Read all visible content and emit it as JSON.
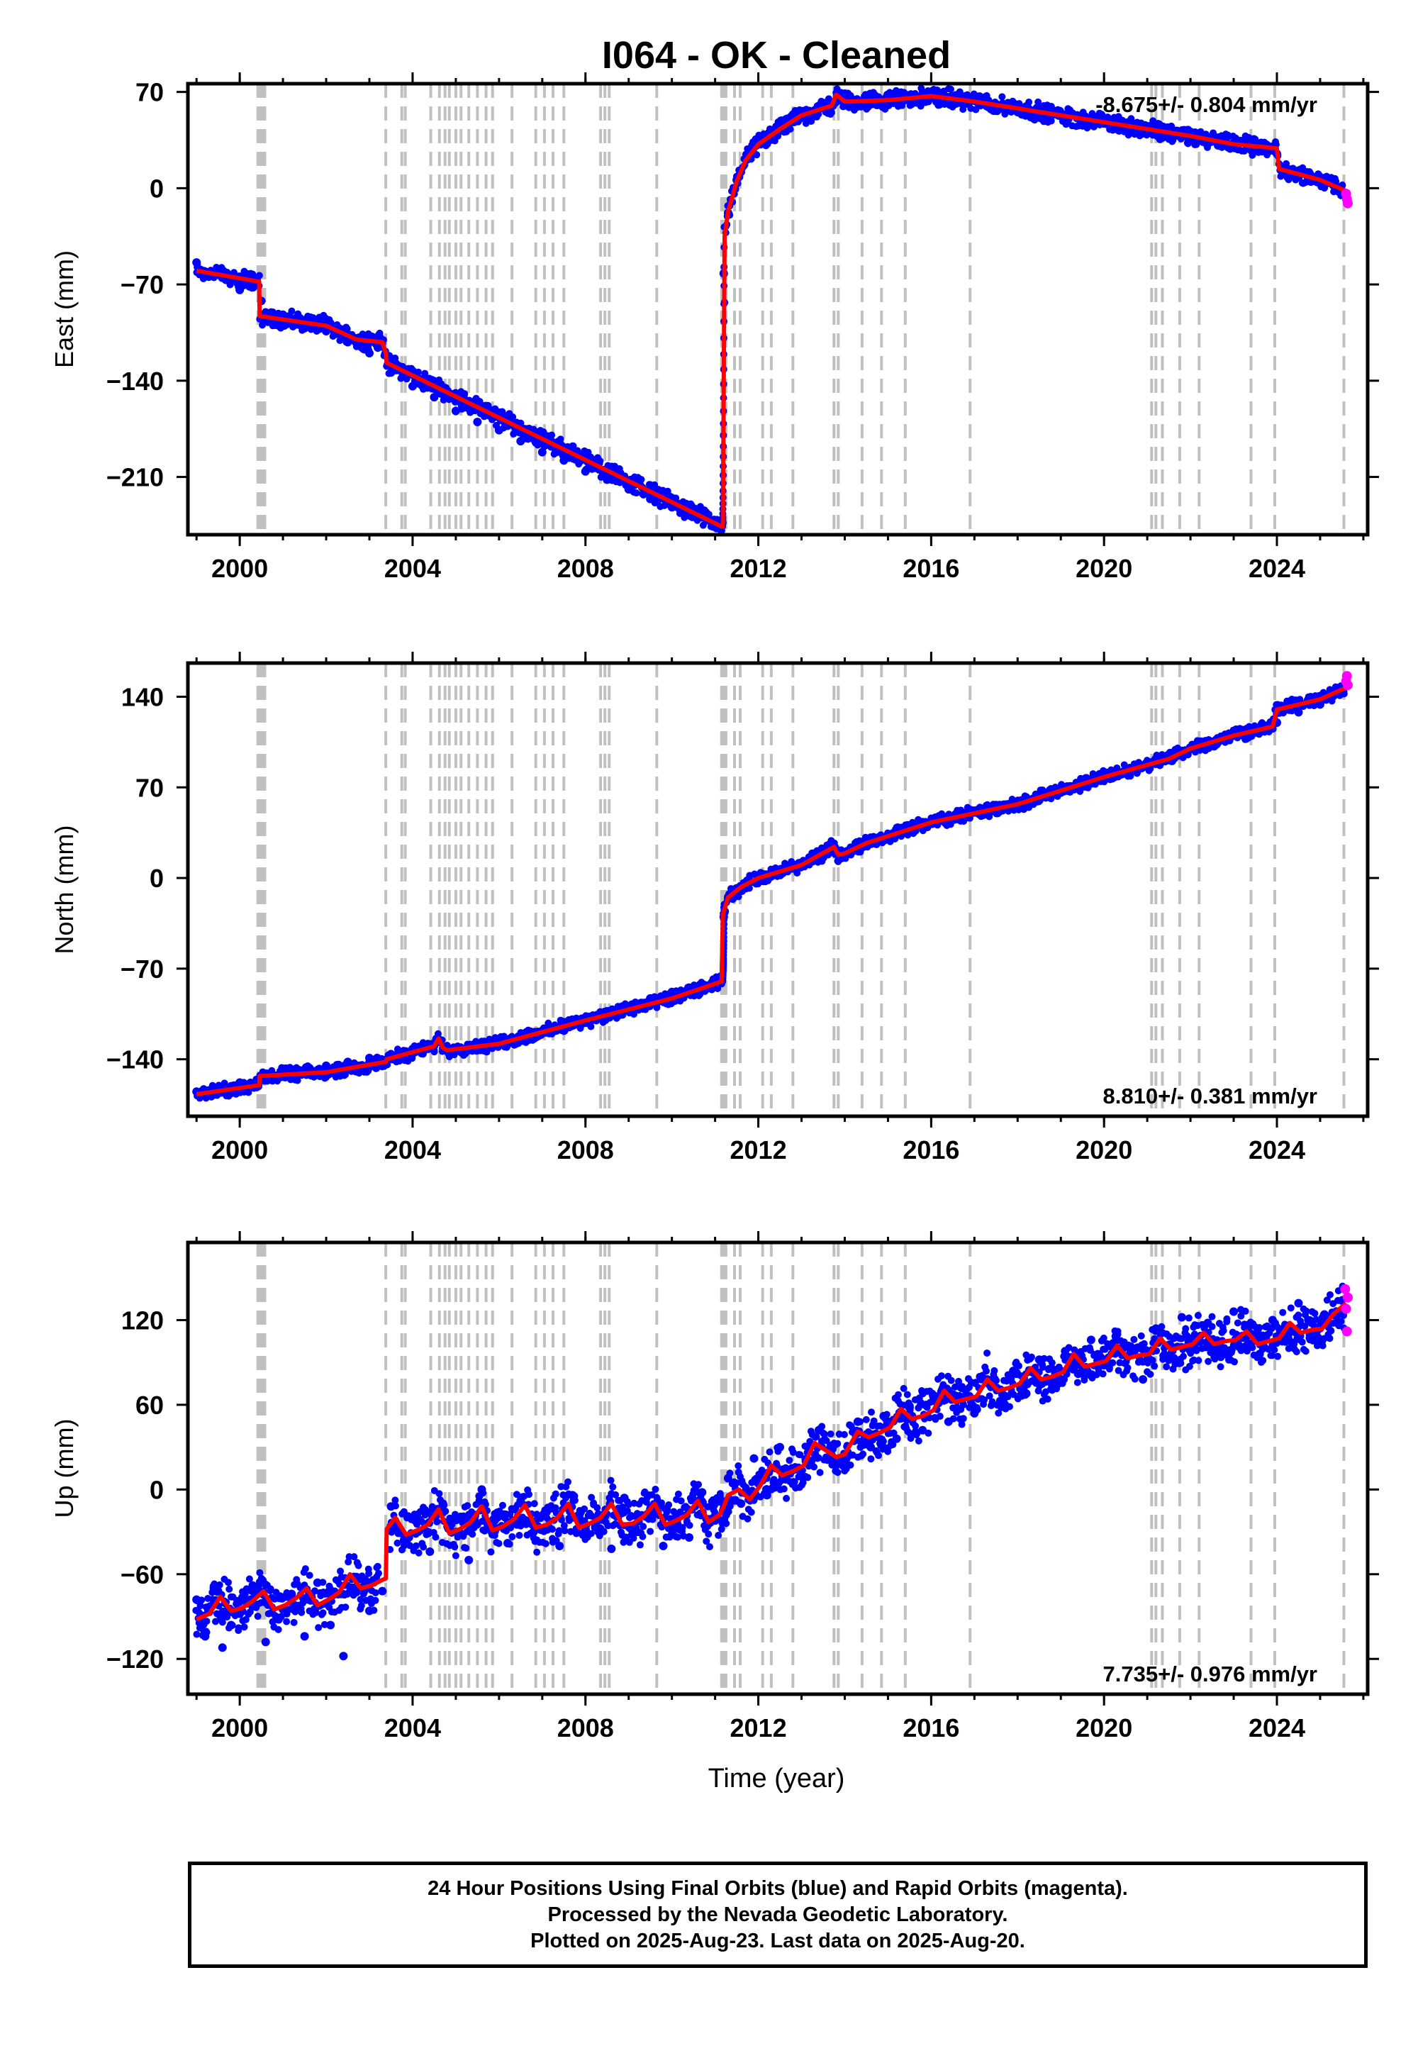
{
  "title": "I064  - OK - Cleaned",
  "xlabel": "Time (year)",
  "colors": {
    "final_orbits": "#0000ff",
    "rapid_orbits": "#ff00ff",
    "model": "#ff0000",
    "event_lines": "#c0c0c0",
    "frame": "#000000"
  },
  "caption": [
    "24 Hour Positions Using Final Orbits (blue) and Rapid Orbits (magenta).",
    "Processed by the Nevada Geodetic Laboratory.",
    "Plotted on 2025-Aug-23. Last data on 2025-Aug-20."
  ],
  "chart_data": [
    {
      "type": "scatter",
      "name": "east",
      "ylabel": "East (mm)",
      "rate": "-8.675+/- 0.804 mm/yr",
      "rate_position": "top-right",
      "xlim": [
        1998.8,
        2026.1
      ],
      "ylim": [
        -252,
        76
      ],
      "xticks": [
        2000,
        2004,
        2008,
        2012,
        2016,
        2020,
        2024
      ],
      "yticks": [
        70,
        0,
        -70,
        -140,
        -210
      ],
      "ytick_labels": [
        "70",
        "0",
        "−70",
        "−140",
        "−210"
      ],
      "event_years": [
        2000.42,
        2000.46,
        2000.5,
        2000.54,
        2000.58,
        2003.38,
        2003.75,
        2003.83,
        2004.42,
        2004.62,
        2004.75,
        2004.85,
        2005.0,
        2005.12,
        2005.3,
        2005.5,
        2005.7,
        2005.85,
        2006.3,
        2006.85,
        2007.05,
        2007.25,
        2007.5,
        2008.35,
        2008.45,
        2008.55,
        2009.65,
        2011.15,
        2011.2,
        2011.25,
        2011.45,
        2011.58,
        2012.1,
        2012.3,
        2012.8,
        2013.75,
        2013.85,
        2014.4,
        2014.85,
        2015.4,
        2016.9,
        2021.1,
        2021.2,
        2021.35,
        2021.75,
        2022.2,
        2023.4,
        2023.95,
        2025.55
      ],
      "model": {
        "x": [
          1999.0,
          2000.45,
          2000.46,
          2002.0,
          2002.7,
          2003.3,
          2003.38,
          2003.4,
          2011.15,
          2011.18,
          2011.22,
          2011.3,
          2011.5,
          2011.7,
          2012.0,
          2012.5,
          2013.0,
          2013.7,
          2013.8,
          2014.0,
          2015.0,
          2016.0,
          2017.0,
          2018.0,
          2019.0,
          2020.0,
          2021.0,
          2022.0,
          2023.0,
          2024.0,
          2024.05,
          2025.0,
          2025.6
        ],
        "y": [
          -60,
          -68,
          -93,
          -100,
          -110,
          -112,
          -120,
          -127,
          -246,
          -246,
          -35,
          -17,
          5,
          20,
          32,
          43,
          53,
          60,
          68,
          63,
          64,
          67,
          63,
          58,
          53,
          48,
          43,
          38,
          32,
          29,
          14,
          6,
          -2
        ]
      },
      "final_points": {
        "x": [
          1999.0,
          1999.5,
          2000.0,
          2000.5,
          2001.0,
          2001.5,
          2002.0,
          2002.5,
          2003.0,
          2003.5,
          2004.0,
          2004.5,
          2005.0,
          2005.5,
          2006.0,
          2006.5,
          2007.0,
          2007.5,
          2008.0,
          2008.5,
          2009.0,
          2009.5,
          2010.0,
          2010.5,
          2011.0,
          2011.2,
          2011.3,
          2011.5,
          2011.75,
          2012.0,
          2012.5,
          2013.0,
          2013.5,
          2014.0,
          2014.5,
          2015.0,
          2015.5,
          2016.0,
          2016.5,
          2017.0,
          2017.5,
          2018.0,
          2018.5,
          2019.0,
          2019.5,
          2020.0,
          2020.5,
          2021.0,
          2021.5,
          2022.0,
          2022.5,
          2023.0,
          2023.5,
          2024.0,
          2024.5,
          2025.0,
          2025.5
        ],
        "y": [
          -54,
          -62,
          -74,
          -82,
          -92,
          -99,
          -104,
          -112,
          -120,
          -134,
          -144,
          -152,
          -162,
          -170,
          -176,
          -184,
          -192,
          -198,
          -206,
          -212,
          -219,
          -226,
          -232,
          -238,
          -244,
          -62,
          -18,
          6,
          22,
          34,
          46,
          55,
          62,
          65,
          66,
          68,
          67,
          69,
          65,
          64,
          60,
          58,
          55,
          53,
          50,
          47,
          45,
          42,
          39,
          36,
          34,
          31,
          29,
          25,
          8,
          5,
          -4
        ]
      },
      "rapid_points": {
        "x": [
          2025.6,
          2025.62,
          2025.64
        ],
        "y": [
          -4,
          -8,
          -11
        ]
      }
    },
    {
      "type": "scatter",
      "name": "north",
      "ylabel": "North (mm)",
      "rate": "8.810+/- 0.381 mm/yr",
      "rate_position": "bottom-right",
      "xlim": [
        1998.8,
        2026.1
      ],
      "ylim": [
        -184,
        166
      ],
      "xticks": [
        2000,
        2004,
        2008,
        2012,
        2016,
        2020,
        2024
      ],
      "yticks": [
        140,
        70,
        0,
        -70,
        -140
      ],
      "ytick_labels": [
        "140",
        "70",
        "0",
        "−70",
        "−140"
      ],
      "event_years": [
        2000.42,
        2000.46,
        2000.5,
        2000.54,
        2000.58,
        2003.38,
        2003.75,
        2003.83,
        2004.42,
        2004.62,
        2004.75,
        2004.85,
        2005.0,
        2005.12,
        2005.3,
        2005.5,
        2005.7,
        2005.85,
        2006.3,
        2006.85,
        2007.05,
        2007.25,
        2007.5,
        2008.35,
        2008.45,
        2008.55,
        2009.65,
        2011.15,
        2011.2,
        2011.25,
        2011.45,
        2011.58,
        2012.1,
        2012.3,
        2012.8,
        2013.75,
        2013.85,
        2014.4,
        2014.85,
        2015.4,
        2016.9,
        2021.1,
        2021.2,
        2021.35,
        2021.75,
        2022.2,
        2023.4,
        2023.95,
        2025.55
      ],
      "model": {
        "x": [
          1999.0,
          2000.45,
          2000.46,
          2002.0,
          2003.38,
          2003.4,
          2004.5,
          2004.6,
          2004.7,
          2004.8,
          2006.0,
          2008.0,
          2010.0,
          2011.15,
          2011.18,
          2011.3,
          2011.6,
          2012.0,
          2013.0,
          2013.75,
          2013.85,
          2014.0,
          2014.5,
          2016.0,
          2018.0,
          2020.0,
          2021.5,
          2022.0,
          2023.0,
          2023.9,
          2024.0,
          2025.0,
          2025.6
        ],
        "y": [
          -167,
          -160,
          -153,
          -150,
          -142,
          -140,
          -130,
          -124,
          -131,
          -133,
          -128,
          -110,
          -93,
          -80,
          -28,
          -15,
          -7,
          0,
          10,
          24,
          18,
          19,
          27,
          43,
          57,
          78,
          92,
          100,
          110,
          117,
          130,
          138,
          147
        ]
      },
      "final_points": {
        "x": [
          1999.0,
          1999.5,
          2000.0,
          2000.5,
          2001.0,
          2001.5,
          2002.0,
          2002.5,
          2003.0,
          2003.5,
          2004.0,
          2004.5,
          2005.0,
          2005.5,
          2006.0,
          2006.5,
          2007.0,
          2007.5,
          2008.0,
          2008.5,
          2009.0,
          2009.5,
          2010.0,
          2010.5,
          2011.0,
          2011.2,
          2011.3,
          2011.5,
          2012.0,
          2012.5,
          2013.0,
          2013.5,
          2014.0,
          2014.5,
          2015.0,
          2015.5,
          2016.0,
          2016.5,
          2017.0,
          2017.5,
          2018.0,
          2018.5,
          2019.0,
          2019.5,
          2020.0,
          2020.5,
          2021.0,
          2021.5,
          2022.0,
          2022.5,
          2023.0,
          2023.5,
          2024.0,
          2024.5,
          2025.0,
          2025.5
        ],
        "y": [
          -165,
          -162,
          -158,
          -155,
          -151,
          -148,
          -145,
          -142,
          -139,
          -136,
          -132,
          -129,
          -131,
          -132,
          -128,
          -123,
          -118,
          -114,
          -110,
          -103,
          -99,
          -93,
          -88,
          -85,
          -82,
          -30,
          -16,
          -8,
          0,
          5,
          10,
          16,
          20,
          26,
          32,
          36,
          43,
          46,
          52,
          54,
          57,
          60,
          66,
          72,
          78,
          82,
          88,
          94,
          100,
          104,
          110,
          114,
          120,
          128,
          134,
          143
        ]
      },
      "rapid_points": {
        "x": [
          2025.6,
          2025.62,
          2025.64
        ],
        "y": [
          152,
          156,
          149
        ]
      }
    },
    {
      "type": "scatter",
      "name": "up",
      "ylabel": "Up (mm)",
      "rate": "7.735+/- 0.976 mm/yr",
      "rate_position": "bottom-right",
      "xlim": [
        1998.8,
        2026.1
      ],
      "ylim": [
        -145,
        175
      ],
      "xticks": [
        2000,
        2004,
        2008,
        2012,
        2016,
        2020,
        2024
      ],
      "yticks": [
        120,
        60,
        0,
        -60,
        -120
      ],
      "ytick_labels": [
        "120",
        "60",
        "0",
        "−60",
        "−120"
      ],
      "event_years": [
        2000.42,
        2000.46,
        2000.5,
        2000.54,
        2000.58,
        2003.38,
        2003.75,
        2003.83,
        2004.42,
        2004.62,
        2004.75,
        2004.85,
        2005.0,
        2005.12,
        2005.3,
        2005.5,
        2005.7,
        2005.85,
        2006.3,
        2006.85,
        2007.05,
        2007.25,
        2007.5,
        2008.35,
        2008.45,
        2008.55,
        2009.65,
        2011.15,
        2011.2,
        2011.25,
        2011.45,
        2011.58,
        2012.1,
        2012.3,
        2012.8,
        2013.75,
        2013.85,
        2014.4,
        2014.85,
        2015.4,
        2016.9,
        2021.1,
        2021.2,
        2021.35,
        2021.75,
        2022.2,
        2023.4,
        2023.95,
        2025.55
      ],
      "model": {
        "x": [
          1999.0,
          1999.3,
          1999.55,
          1999.8,
          2000.05,
          2000.3,
          2000.55,
          2000.8,
          2001.05,
          2001.3,
          2001.55,
          2001.8,
          2002.05,
          2002.3,
          2002.55,
          2002.8,
          2003.05,
          2003.3,
          2003.38,
          2003.4,
          2003.6,
          2003.85,
          2004.1,
          2004.35,
          2004.6,
          2004.85,
          2005.1,
          2005.35,
          2005.6,
          2005.85,
          2006.1,
          2006.35,
          2006.6,
          2006.85,
          2007.1,
          2007.35,
          2007.6,
          2007.85,
          2008.1,
          2008.35,
          2008.6,
          2008.85,
          2009.1,
          2009.35,
          2009.6,
          2009.85,
          2010.1,
          2010.35,
          2010.6,
          2010.85,
          2011.1,
          2011.2,
          2011.3,
          2011.55,
          2011.8,
          2012.05,
          2012.3,
          2012.55,
          2012.8,
          2013.05,
          2013.3,
          2013.55,
          2013.8,
          2014.0,
          2014.3,
          2014.55,
          2014.8,
          2015.05,
          2015.3,
          2015.55,
          2015.8,
          2016.05,
          2016.3,
          2016.55,
          2016.8,
          2017.05,
          2017.3,
          2017.55,
          2017.8,
          2018.05,
          2018.3,
          2018.55,
          2018.8,
          2019.05,
          2019.3,
          2019.55,
          2019.8,
          2020.05,
          2020.3,
          2020.55,
          2020.8,
          2021.05,
          2021.3,
          2021.55,
          2021.8,
          2022.05,
          2022.3,
          2022.55,
          2022.8,
          2023.05,
          2023.3,
          2023.55,
          2023.8,
          2024.05,
          2024.3,
          2024.55,
          2024.8,
          2025.05,
          2025.3,
          2025.6
        ],
        "y": [
          -92,
          -88,
          -76,
          -86,
          -84,
          -79,
          -72,
          -85,
          -82,
          -77,
          -70,
          -82,
          -78,
          -73,
          -60,
          -70,
          -68,
          -64,
          -63,
          -28,
          -20,
          -32,
          -29,
          -25,
          -14,
          -31,
          -28,
          -23,
          -12,
          -29,
          -26,
          -21,
          -11,
          -27,
          -25,
          -20,
          -10,
          -27,
          -24,
          -20,
          -10,
          -25,
          -24,
          -19,
          -10,
          -25,
          -22,
          -18,
          -8,
          -23,
          -18,
          -12,
          -4,
          0,
          -7,
          3,
          17,
          10,
          13,
          17,
          33,
          28,
          23,
          25,
          41,
          37,
          40,
          44,
          57,
          50,
          52,
          56,
          70,
          62,
          64,
          66,
          78,
          70,
          72,
          75,
          86,
          78,
          80,
          83,
          96,
          87,
          89,
          91,
          102,
          93,
          95,
          96,
          107,
          99,
          101,
          103,
          111,
          103,
          105,
          106,
          112,
          103,
          105,
          107,
          118,
          111,
          113,
          114,
          124,
          132
        ]
      },
      "final_points": {
        "x": [
          1999.0,
          1999.2,
          1999.4,
          1999.6,
          1999.8,
          2000.0,
          2000.3,
          2000.6,
          2000.9,
          2001.2,
          2001.5,
          2001.8,
          2002.1,
          2002.4,
          2002.7,
          2003.0,
          2003.3,
          2003.5,
          2003.8,
          2004.1,
          2004.4,
          2004.7,
          2005.0,
          2005.3,
          2005.6,
          2005.9,
          2006.2,
          2006.5,
          2006.8,
          2007.1,
          2007.4,
          2007.7,
          2008.0,
          2008.3,
          2008.6,
          2008.9,
          2009.2,
          2009.5,
          2009.8,
          2010.1,
          2010.4,
          2010.7,
          2011.0,
          2011.3,
          2011.6,
          2011.9,
          2012.2,
          2012.5,
          2012.8,
          2013.1,
          2013.4,
          2013.7,
          2014.0,
          2014.3,
          2014.6,
          2014.9,
          2015.2,
          2015.5,
          2015.8,
          2016.1,
          2016.4,
          2016.7,
          2017.0,
          2017.3,
          2017.6,
          2017.9,
          2018.2,
          2018.5,
          2018.8,
          2019.1,
          2019.4,
          2019.7,
          2020.0,
          2020.3,
          2020.6,
          2020.9,
          2021.2,
          2021.5,
          2021.8,
          2022.1,
          2022.4,
          2022.7,
          2023.0,
          2023.3,
          2023.6,
          2023.9,
          2024.2,
          2024.5,
          2024.8,
          2025.1,
          2025.4
        ],
        "y": [
          -78,
          -104,
          -70,
          -112,
          -96,
          -88,
          -68,
          -108,
          -92,
          -74,
          -104,
          -66,
          -96,
          -118,
          -62,
          -86,
          -72,
          -12,
          -36,
          -18,
          -44,
          -10,
          -30,
          -50,
          0,
          -22,
          -38,
          -8,
          -30,
          -16,
          -40,
          -4,
          -28,
          -20,
          -42,
          -6,
          -30,
          -14,
          -40,
          -18,
          -34,
          -2,
          -22,
          8,
          -10,
          22,
          -4,
          30,
          4,
          20,
          42,
          24,
          18,
          48,
          30,
          52,
          36,
          58,
          42,
          66,
          48,
          72,
          54,
          78,
          62,
          84,
          68,
          92,
          74,
          98,
          82,
          106,
          88,
          110,
          96,
          78,
          114,
          92,
          122,
          100,
          118,
          94,
          126,
          102,
          96,
          120,
          106,
          132,
          110,
          124,
          118
        ]
      },
      "rapid_points": {
        "x": [
          2025.58,
          2025.6,
          2025.62,
          2025.64
        ],
        "y": [
          142,
          128,
          112,
          136
        ]
      }
    }
  ]
}
